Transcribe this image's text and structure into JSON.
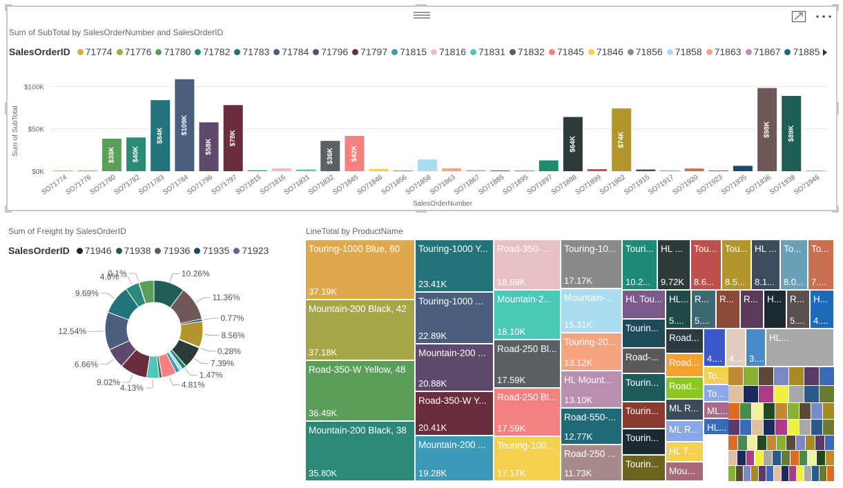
{
  "top_chart": {
    "title": "Sum of SubTotal by SalesOrderNumber and SalesOrderID",
    "legend_title": "SalesOrderID",
    "legend_items": [
      {
        "label": "71774",
        "color": "#e0a84d"
      },
      {
        "label": "71776",
        "color": "#a6a646"
      },
      {
        "label": "71780",
        "color": "#5a9e5a"
      },
      {
        "label": "71782",
        "color": "#2a8a77"
      },
      {
        "label": "71783",
        "color": "#23737b"
      },
      {
        "label": "71784",
        "color": "#4a5e80"
      },
      {
        "label": "71796",
        "color": "#5f4a6e"
      },
      {
        "label": "71797",
        "color": "#6a2d3d"
      },
      {
        "label": "71815",
        "color": "#3a9ab8"
      },
      {
        "label": "71816",
        "color": "#e8c0c4"
      },
      {
        "label": "71831",
        "color": "#4cc8b8"
      },
      {
        "label": "71832",
        "color": "#5a6064"
      },
      {
        "label": "71845",
        "color": "#f58080"
      },
      {
        "label": "71846",
        "color": "#f4cf50"
      },
      {
        "label": "71856",
        "color": "#8a8a8a"
      },
      {
        "label": "71858",
        "color": "#a8dcee"
      },
      {
        "label": "71863",
        "color": "#f6a480"
      },
      {
        "label": "71867",
        "color": "#b98eb0"
      },
      {
        "label": "71885",
        "color": "#1e6a78"
      }
    ]
  },
  "chart_data": [
    {
      "type": "bar",
      "title": "Sum of SubTotal by SalesOrderNumber and SalesOrderID",
      "xlabel": "SalesOrderNumber",
      "ylabel": "Sum of SubTotal",
      "ylim": [
        0,
        110000
      ],
      "yticks": [
        "$0K",
        "$50K",
        "$100K"
      ],
      "ytick_values": [
        0,
        50000,
        100000
      ],
      "grid": true,
      "legend_position": "top",
      "categories": [
        "SO71774",
        "SO71776",
        "SO71780",
        "SO71782",
        "SO71783",
        "SO71784",
        "SO71796",
        "SO71797",
        "SO71815",
        "SO71816",
        "SO71831",
        "SO71832",
        "SO71845",
        "SO71846",
        "SO71856",
        "SO71858",
        "SO71863",
        "SO71867",
        "SO71885",
        "SO71895",
        "SO71897",
        "SO71898",
        "SO71899",
        "SO71902",
        "SO71915",
        "SO71917",
        "SO71920",
        "SO71923",
        "SO71935",
        "SO71936",
        "SO71938",
        "SO71946"
      ],
      "values": [
        880,
        78,
        38418,
        39785,
        83859,
        108562,
        57634,
        78029,
        1141,
        3398,
        2017,
        35775,
        41561,
        2674,
        602,
        13824,
        3324,
        1059,
        608,
        246,
        12686,
        63981,
        2416,
        74058,
        2006,
        84,
        3085,
        79,
        6328,
        98139,
        88812,
        39
      ],
      "colors": [
        "#e0a84d",
        "#a6a646",
        "#5a9e5a",
        "#2a8a77",
        "#23737b",
        "#4a5e80",
        "#5f4a6e",
        "#6a2d3d",
        "#3a9ab8",
        "#e8c0c4",
        "#4cc8b8",
        "#5a6064",
        "#f58080",
        "#f4cf50",
        "#8a8a8a",
        "#a8dcee",
        "#f6a480",
        "#b98eb0",
        "#1e6a78",
        "#6e8aa0",
        "#1e8a6e",
        "#2d3a3a",
        "#c0504d",
        "#b3962b",
        "#3d4c5c",
        "#8a8aa8",
        "#c87050",
        "#7a5a8a",
        "#1e4a6a",
        "#6e5858",
        "#1e5e55",
        "#9bb3c8"
      ],
      "data_labels": [
        "",
        "",
        "$38K",
        "$40K",
        "$84K",
        "$109K",
        "$58K",
        "$78K",
        "",
        "",
        "",
        "$36K",
        "$42K",
        "",
        "",
        "",
        "",
        "",
        "",
        "",
        "",
        "$64K",
        "",
        "$74K",
        "",
        "",
        "",
        "",
        "",
        "$98K",
        "$89K",
        ""
      ]
    },
    {
      "type": "pie",
      "title": "Sum of Freight by SalesOrderID",
      "legend_title": "SalesOrderID",
      "legend_items": [
        {
          "label": "71946",
          "color": "#1f2a2f"
        },
        {
          "label": "71938",
          "color": "#1e5e55"
        },
        {
          "label": "71936",
          "color": "#6e5858"
        },
        {
          "label": "71935",
          "color": "#1e4a6a"
        },
        {
          "label": "71923",
          "color": "#7a5a8a"
        }
      ],
      "slices": [
        {
          "value": 10.26,
          "label": "10.26%",
          "color": "#1e5e55"
        },
        {
          "value": 11.36,
          "label": "11.36%",
          "color": "#6e5858"
        },
        {
          "value": 0.77,
          "label": "0.77%",
          "color": "#1e4a6a"
        },
        {
          "value": 8.56,
          "label": "8.56%",
          "color": "#b3962b"
        },
        {
          "value": 0.28,
          "label": "0.28%",
          "color": "#c87050"
        },
        {
          "value": 7.39,
          "label": "7.39%",
          "color": "#2d3a3a"
        },
        {
          "value": 1.47,
          "label": "1.47%",
          "color": "#1e8a6e"
        },
        {
          "value": 1.0,
          "label": "",
          "color": "#a8dcee"
        },
        {
          "value": 1.4,
          "label": "",
          "color": "#3a9ab8"
        },
        {
          "value": 4.81,
          "label": "4.81%",
          "color": "#f58080"
        },
        {
          "value": 1.0,
          "label": "",
          "color": "#5a6064"
        },
        {
          "value": 4.13,
          "label": "4.13%",
          "color": "#4cc8b8"
        },
        {
          "value": 9.02,
          "label": "9.02%",
          "color": "#6a2d3d"
        },
        {
          "value": 6.66,
          "label": "6.66%",
          "color": "#5f4a6e"
        },
        {
          "value": 12.54,
          "label": "12.54%",
          "color": "#4a5e80"
        },
        {
          "value": 9.69,
          "label": "9.69%",
          "color": "#23737b"
        },
        {
          "value": 4.6,
          "label": "4.6%",
          "color": "#2a8a77"
        },
        {
          "value": 0.1,
          "label": "0.1%",
          "color": "#a6a646"
        },
        {
          "value": 4.94,
          "label": "",
          "color": "#5a9e5a"
        }
      ]
    },
    {
      "type": "treemap",
      "title": "LineTotal by ProductName",
      "tiles": [
        {
          "name": "Touring-1000 Blue, 60",
          "value": "37.19K",
          "color": "#e0a84d"
        },
        {
          "name": "Mountain-200 Black, 42",
          "value": "37.18K",
          "color": "#a6a646"
        },
        {
          "name": "Road-350-W Yellow, 48",
          "value": "36.49K",
          "color": "#5a9e5a"
        },
        {
          "name": "Mountain-200 Black, 38",
          "value": "35.80K",
          "color": "#2a8a77"
        },
        {
          "name": "Touring-1000 Y...",
          "value": "23.41K",
          "color": "#23737b"
        },
        {
          "name": "Touring-1000 ...",
          "value": "22.89K",
          "color": "#4a5e80"
        },
        {
          "name": "Mountain-200 ...",
          "value": "20.88K",
          "color": "#5f4a6e"
        },
        {
          "name": "Road-350-W Y...",
          "value": "20.41K",
          "color": "#6a2d3d"
        },
        {
          "name": "Mountain-200 ...",
          "value": "19.28K",
          "color": "#3a9ab8"
        },
        {
          "name": "Road-350-...",
          "value": "18.69K",
          "color": "#e8c0c4"
        },
        {
          "name": "Mountain-2...",
          "value": "18.10K",
          "color": "#4cc8b8"
        },
        {
          "name": "Road-250 Bl...",
          "value": "17.59K",
          "color": "#5a6064"
        },
        {
          "name": "Road-250 Bl...",
          "value": "17.59K",
          "color": "#f58080"
        },
        {
          "name": "Touring-100...",
          "value": "17.17K",
          "color": "#f4cf50"
        },
        {
          "name": "Touring-10...",
          "value": "17.17K",
          "color": "#8a8a8a"
        },
        {
          "name": "Mountain-...",
          "value": "15.31K",
          "color": "#a8dcee"
        },
        {
          "name": "Touring-20...",
          "value": "13.12K",
          "color": "#f6a480"
        },
        {
          "name": "HL Mount...",
          "value": "13.10K",
          "color": "#b98eb0"
        },
        {
          "name": "Road-550-...",
          "value": "12.77K",
          "color": "#1e6a78"
        },
        {
          "name": "Road-250 ...",
          "value": "11.73K",
          "color": "#a88a8a"
        },
        {
          "name": "Touri...",
          "value": "10.2...",
          "color": "#1e8a78"
        },
        {
          "name": "HL ...",
          "value": "9.72K",
          "color": "#2d3a3a"
        },
        {
          "name": "Tou...",
          "value": "8.6...",
          "color": "#c0504d"
        },
        {
          "name": "Tou...",
          "value": "8.5...",
          "color": "#b3962b"
        },
        {
          "name": "HL ...",
          "value": "8.1...",
          "color": "#3d4c5c"
        },
        {
          "name": "To...",
          "value": "8.0...",
          "color": "#6aa0b8"
        },
        {
          "name": "To...",
          "value": "7....",
          "color": "#c87050"
        },
        {
          "name": "HL Tou...",
          "value": "",
          "color": "#7a5a8a"
        },
        {
          "name": "HL...",
          "value": "5....",
          "color": "#1e4a4a"
        },
        {
          "name": "R...",
          "value": "5....",
          "color": "#3d6a72"
        },
        {
          "name": "R...",
          "value": "",
          "color": "#8a4a3a"
        },
        {
          "name": "R...",
          "value": "",
          "color": "#5a3a5a"
        },
        {
          "name": "H...",
          "value": "",
          "color": "#1a2a30"
        },
        {
          "name": "R...",
          "value": "5....",
          "color": "#5a5050"
        },
        {
          "name": "H...",
          "value": "4....",
          "color": "#1e6ab8"
        },
        {
          "name": "Tourin...",
          "value": "",
          "color": "#1e4a5a"
        },
        {
          "name": "Road-...",
          "value": "",
          "color": "#5a5a5a"
        },
        {
          "name": "Tourin...",
          "value": "",
          "color": "#1e5a5a"
        },
        {
          "name": "Tourin...",
          "value": "",
          "color": "#8a3a30"
        },
        {
          "name": "Tourin...",
          "value": "",
          "color": "#1a2a30"
        },
        {
          "name": "Tourin...",
          "value": "",
          "color": "#6a6420"
        },
        {
          "name": "Road...",
          "value": "",
          "color": "#2d3a42"
        },
        {
          "name": "Road...",
          "value": "",
          "color": "#f6a030"
        },
        {
          "name": "Road...",
          "value": "",
          "color": "#8ac820"
        },
        {
          "name": "ML R...",
          "value": "",
          "color": "#3a4a5a"
        },
        {
          "name": "ML R...",
          "value": "",
          "color": "#8aa8e8"
        },
        {
          "name": "HL T...",
          "value": "",
          "color": "#f4d050"
        },
        {
          "name": "Mou...",
          "value": "",
          "color": "#a86a78"
        },
        {
          "name": "",
          "value": "4....",
          "color": "#3a58c8"
        },
        {
          "name": "",
          "value": "4....",
          "color": "#e0ccc0"
        },
        {
          "name": "",
          "value": "3....",
          "color": "#4a8ac8"
        },
        {
          "name": "To...",
          "value": "",
          "color": "#f4d050"
        },
        {
          "name": "To...",
          "value": "",
          "color": "#8aa8e8"
        },
        {
          "name": "ML...",
          "value": "",
          "color": "#a86a88"
        },
        {
          "name": "HL...",
          "value": "",
          "color": "#3a6ab8"
        },
        {
          "name": "HL...",
          "value": "",
          "color": "#a8a8a8"
        }
      ]
    }
  ],
  "pie_chart": {
    "title": "Sum of Freight by SalesOrderID",
    "legend_title": "SalesOrderID"
  },
  "treemap": {
    "title": "LineTotal by ProductName"
  },
  "icons": {
    "focus_mode": "focus-mode-icon",
    "more_options": "more-options-icon",
    "drag_handle": "drag-handle-icon",
    "legend_next": "legend-next-arrow-icon"
  }
}
